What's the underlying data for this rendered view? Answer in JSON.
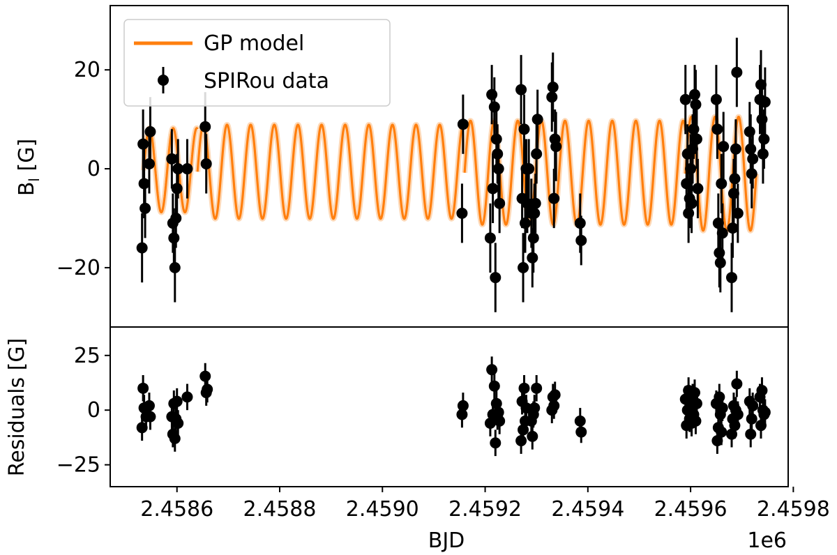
{
  "chart_data": [
    {
      "type": "scatter",
      "panel": "top",
      "ylabel": "B_l [G]",
      "ylabel_main": "B",
      "ylabel_sub": "l",
      "ylabel_unit": " [G]",
      "xlim": [
        2.45847,
        2.45979
      ],
      "ylim": [
        -32,
        33
      ],
      "yticks": [
        20,
        0,
        -20
      ],
      "ytick_labels": [
        "20",
        "0",
        "−20"
      ],
      "legend": {
        "placement": "upper-left",
        "entries": [
          {
            "label": "GP model",
            "style": "line",
            "color": "#ff7f0e"
          },
          {
            "label": "SPIRou data",
            "style": "errorbar-marker",
            "color": "#000000"
          }
        ]
      },
      "series": [
        {
          "name": "GP model",
          "kind": "line",
          "color": "#ff7f0e",
          "period": 4.6e-05,
          "amp_segments": [
            {
              "x_start": 2.458535,
              "x_end": 2.45864,
              "amp": 8.5,
              "offset": -0.3
            },
            {
              "x_start": 2.45864,
              "x_end": 2.45916,
              "amp": 9.5,
              "offset": -0.6
            },
            {
              "x_start": 2.45916,
              "x_end": 2.45959,
              "amp": 10.5,
              "offset": -0.8
            },
            {
              "x_start": 2.45959,
              "x_end": 2.459728,
              "amp": 11.5,
              "offset": -1.0
            }
          ]
        },
        {
          "name": "SPIRou data",
          "kind": "errorbar",
          "color": "#000000",
          "points": [
            {
              "x": 2.458532,
              "y": -16,
              "err": 7
            },
            {
              "x": 2.458534,
              "y": 5,
              "err": 7
            },
            {
              "x": 2.458536,
              "y": -3,
              "err": 7
            },
            {
              "x": 2.458538,
              "y": -8,
              "err": 6
            },
            {
              "x": 2.458546,
              "y": 1,
              "err": 6
            },
            {
              "x": 2.458548,
              "y": 7.5,
              "err": 7
            },
            {
              "x": 2.45859,
              "y": 2,
              "err": 6
            },
            {
              "x": 2.458592,
              "y": -11,
              "err": 6
            },
            {
              "x": 2.458594,
              "y": -14,
              "err": 6
            },
            {
              "x": 2.458596,
              "y": -20,
              "err": 7
            },
            {
              "x": 2.458598,
              "y": -10,
              "err": 6
            },
            {
              "x": 2.4586,
              "y": -4,
              "err": 7
            },
            {
              "x": 2.458602,
              "y": 0,
              "err": 6
            },
            {
              "x": 2.45862,
              "y": 0,
              "err": 6
            },
            {
              "x": 2.458655,
              "y": 8.5,
              "err": 7
            },
            {
              "x": 2.458657,
              "y": 1,
              "err": 6
            },
            {
              "x": 2.459155,
              "y": -9,
              "err": 6
            },
            {
              "x": 2.459157,
              "y": 9,
              "err": 6
            },
            {
              "x": 2.45921,
              "y": -14,
              "err": 7
            },
            {
              "x": 2.459213,
              "y": 15,
              "err": 6
            },
            {
              "x": 2.459215,
              "y": -4,
              "err": 7
            },
            {
              "x": 2.459218,
              "y": 12.5,
              "err": 6
            },
            {
              "x": 2.45922,
              "y": -22,
              "err": 7
            },
            {
              "x": 2.459222,
              "y": 6,
              "err": 7
            },
            {
              "x": 2.459224,
              "y": 3,
              "err": 6
            },
            {
              "x": 2.459226,
              "y": 0,
              "err": 6
            },
            {
              "x": 2.459228,
              "y": -7,
              "err": 6
            },
            {
              "x": 2.45927,
              "y": 16,
              "err": 7
            },
            {
              "x": 2.459272,
              "y": -6,
              "err": 6
            },
            {
              "x": 2.459274,
              "y": -20,
              "err": 7
            },
            {
              "x": 2.459276,
              "y": 8,
              "err": 7
            },
            {
              "x": 2.459278,
              "y": -11,
              "err": 6
            },
            {
              "x": 2.45928,
              "y": 0,
              "err": 6
            },
            {
              "x": 2.459282,
              "y": -7,
              "err": 6
            },
            {
              "x": 2.459285,
              "y": 0,
              "err": 6
            },
            {
              "x": 2.45929,
              "y": -9,
              "err": 7
            },
            {
              "x": 2.459292,
              "y": -18,
              "err": 6
            },
            {
              "x": 2.459294,
              "y": -14,
              "err": 7
            },
            {
              "x": 2.459296,
              "y": -9,
              "err": 6
            },
            {
              "x": 2.459298,
              "y": -7,
              "err": 6
            },
            {
              "x": 2.4593,
              "y": 3,
              "err": 6
            },
            {
              "x": 2.459302,
              "y": 10,
              "err": 6
            },
            {
              "x": 2.45933,
              "y": 14.5,
              "err": 7
            },
            {
              "x": 2.459332,
              "y": 16.5,
              "err": 7
            },
            {
              "x": 2.459334,
              "y": -6,
              "err": 6
            },
            {
              "x": 2.459336,
              "y": 6,
              "err": 6
            },
            {
              "x": 2.459338,
              "y": 4.5,
              "err": 7
            },
            {
              "x": 2.459385,
              "y": -11,
              "err": 6
            },
            {
              "x": 2.459387,
              "y": -14.5,
              "err": 5
            },
            {
              "x": 2.45959,
              "y": 14,
              "err": 7
            },
            {
              "x": 2.459592,
              "y": -3,
              "err": 7
            },
            {
              "x": 2.459594,
              "y": 3,
              "err": 6
            },
            {
              "x": 2.459596,
              "y": -9,
              "err": 6
            },
            {
              "x": 2.459598,
              "y": -6,
              "err": 6
            },
            {
              "x": 2.4596,
              "y": 0,
              "err": 7
            },
            {
              "x": 2.459602,
              "y": -7,
              "err": 6
            },
            {
              "x": 2.459604,
              "y": 4,
              "err": 7
            },
            {
              "x": 2.459606,
              "y": 8,
              "err": 6
            },
            {
              "x": 2.459608,
              "y": 15,
              "err": 6
            },
            {
              "x": 2.45961,
              "y": 13,
              "err": 7
            },
            {
              "x": 2.459612,
              "y": 6,
              "err": 6
            },
            {
              "x": 2.459614,
              "y": -4,
              "err": 6
            },
            {
              "x": 2.45965,
              "y": 14,
              "err": 7
            },
            {
              "x": 2.459652,
              "y": 8,
              "err": 6
            },
            {
              "x": 2.459654,
              "y": -11,
              "err": 6
            },
            {
              "x": 2.459656,
              "y": -17,
              "err": 7
            },
            {
              "x": 2.459658,
              "y": -19,
              "err": 6
            },
            {
              "x": 2.45966,
              "y": -3,
              "err": 6
            },
            {
              "x": 2.459662,
              "y": -13,
              "err": 6
            },
            {
              "x": 2.459664,
              "y": 4.5,
              "err": 7
            },
            {
              "x": 2.45968,
              "y": -22,
              "err": 7
            },
            {
              "x": 2.459682,
              "y": -12,
              "err": 6
            },
            {
              "x": 2.459684,
              "y": -5,
              "err": 7
            },
            {
              "x": 2.459686,
              "y": -2,
              "err": 6
            },
            {
              "x": 2.459688,
              "y": 4,
              "err": 6
            },
            {
              "x": 2.45969,
              "y": 19.5,
              "err": 7
            },
            {
              "x": 2.459692,
              "y": -9,
              "err": 6
            },
            {
              "x": 2.459715,
              "y": 7.5,
              "err": 6
            },
            {
              "x": 2.459717,
              "y": 4,
              "err": 7
            },
            {
              "x": 2.459719,
              "y": -1,
              "err": 7
            },
            {
              "x": 2.459721,
              "y": 2,
              "err": 6
            },
            {
              "x": 2.459735,
              "y": 14,
              "err": 7
            },
            {
              "x": 2.459737,
              "y": 17,
              "err": 7
            },
            {
              "x": 2.459739,
              "y": 10,
              "err": 6
            },
            {
              "x": 2.459741,
              "y": 3,
              "err": 6
            },
            {
              "x": 2.459743,
              "y": 6,
              "err": 6
            },
            {
              "x": 2.459745,
              "y": 13.5,
              "err": 7
            }
          ]
        }
      ]
    },
    {
      "type": "scatter",
      "panel": "bottom",
      "xlabel": "BJD",
      "ylabel": "Residuals [G]",
      "offset_label": "1e6",
      "xlim": [
        2.45847,
        2.45979
      ],
      "ylim": [
        -35,
        38
      ],
      "xticks": [
        2.4586,
        2.4588,
        2.459,
        2.4592,
        2.4594,
        2.4596,
        2.4598
      ],
      "xtick_labels": [
        "2.4586",
        "2.4588",
        "2.4590",
        "2.4592",
        "2.4594",
        "2.4596",
        "2.4598"
      ],
      "yticks": [
        25,
        0,
        -25
      ],
      "ytick_labels": [
        "25",
        "0",
        "−25"
      ],
      "series": [
        {
          "name": "",
          "kind": "errorbar",
          "color": "#000000",
          "points": [
            {
              "x": 2.458532,
              "y": -8,
              "err": 6
            },
            {
              "x": 2.458534,
              "y": 10,
              "err": 6
            },
            {
              "x": 2.458536,
              "y": 1,
              "err": 6
            },
            {
              "x": 2.45854,
              "y": -3,
              "err": 6
            },
            {
              "x": 2.458546,
              "y": 2,
              "err": 6
            },
            {
              "x": 2.458548,
              "y": -3,
              "err": 6
            },
            {
              "x": 2.45859,
              "y": -3,
              "err": 6
            },
            {
              "x": 2.458592,
              "y": -11,
              "err": 6
            },
            {
              "x": 2.458594,
              "y": 3,
              "err": 6
            },
            {
              "x": 2.458596,
              "y": -13,
              "err": 6
            },
            {
              "x": 2.458598,
              "y": -4,
              "err": 6
            },
            {
              "x": 2.4586,
              "y": 4,
              "err": 6
            },
            {
              "x": 2.458602,
              "y": -6,
              "err": 6
            },
            {
              "x": 2.45862,
              "y": 6,
              "err": 6
            },
            {
              "x": 2.458655,
              "y": 15.5,
              "err": 6
            },
            {
              "x": 2.458657,
              "y": 8,
              "err": 6
            },
            {
              "x": 2.458659,
              "y": 9.5,
              "err": 6
            },
            {
              "x": 2.459155,
              "y": -2,
              "err": 6
            },
            {
              "x": 2.459157,
              "y": 2,
              "err": 6
            },
            {
              "x": 2.45921,
              "y": -6,
              "err": 6
            },
            {
              "x": 2.459213,
              "y": 18.5,
              "err": 6
            },
            {
              "x": 2.459215,
              "y": -2,
              "err": 6
            },
            {
              "x": 2.459218,
              "y": 11,
              "err": 6
            },
            {
              "x": 2.45922,
              "y": -15,
              "err": 6
            },
            {
              "x": 2.459222,
              "y": 3,
              "err": 6
            },
            {
              "x": 2.459224,
              "y": -3,
              "err": 6
            },
            {
              "x": 2.459226,
              "y": -1,
              "err": 6
            },
            {
              "x": 2.459228,
              "y": -5,
              "err": 6
            },
            {
              "x": 2.45927,
              "y": -14,
              "err": 6
            },
            {
              "x": 2.459272,
              "y": 4,
              "err": 6
            },
            {
              "x": 2.459274,
              "y": -9,
              "err": 6
            },
            {
              "x": 2.459276,
              "y": 10,
              "err": 6
            },
            {
              "x": 2.459278,
              "y": -5,
              "err": 6
            },
            {
              "x": 2.45928,
              "y": 1,
              "err": 6
            },
            {
              "x": 2.45929,
              "y": -5,
              "err": 6
            },
            {
              "x": 2.459292,
              "y": -12,
              "err": 6
            },
            {
              "x": 2.459294,
              "y": -2,
              "err": 6
            },
            {
              "x": 2.459296,
              "y": 1,
              "err": 6
            },
            {
              "x": 2.4593,
              "y": 10,
              "err": 6
            },
            {
              "x": 2.45933,
              "y": 0,
              "err": 6
            },
            {
              "x": 2.459332,
              "y": 6,
              "err": 6
            },
            {
              "x": 2.459334,
              "y": 2,
              "err": 6
            },
            {
              "x": 2.459336,
              "y": 7,
              "err": 6
            },
            {
              "x": 2.459385,
              "y": -5,
              "err": 6
            },
            {
              "x": 2.459387,
              "y": -10,
              "err": 5
            },
            {
              "x": 2.45959,
              "y": 5,
              "err": 6
            },
            {
              "x": 2.459592,
              "y": -7,
              "err": 6
            },
            {
              "x": 2.459594,
              "y": 0,
              "err": 6
            },
            {
              "x": 2.459596,
              "y": 9,
              "err": 6
            },
            {
              "x": 2.459598,
              "y": -4,
              "err": 6
            },
            {
              "x": 2.4596,
              "y": 2,
              "err": 6
            },
            {
              "x": 2.459602,
              "y": -6,
              "err": 6
            },
            {
              "x": 2.459604,
              "y": 6,
              "err": 6
            },
            {
              "x": 2.459606,
              "y": -2,
              "err": 6
            },
            {
              "x": 2.459608,
              "y": 8,
              "err": 6
            },
            {
              "x": 2.45961,
              "y": -5,
              "err": 6
            },
            {
              "x": 2.459612,
              "y": 3,
              "err": 6
            },
            {
              "x": 2.45965,
              "y": 3,
              "err": 6
            },
            {
              "x": 2.459652,
              "y": -14,
              "err": 6
            },
            {
              "x": 2.459654,
              "y": -8,
              "err": 6
            },
            {
              "x": 2.459656,
              "y": 6,
              "err": 6
            },
            {
              "x": 2.459658,
              "y": -2,
              "err": 6
            },
            {
              "x": 2.45966,
              "y": -10,
              "err": 6
            },
            {
              "x": 2.459662,
              "y": 1,
              "err": 6
            },
            {
              "x": 2.45968,
              "y": -11,
              "err": 6
            },
            {
              "x": 2.459682,
              "y": -4,
              "err": 6
            },
            {
              "x": 2.459684,
              "y": 2,
              "err": 6
            },
            {
              "x": 2.459686,
              "y": -7,
              "err": 6
            },
            {
              "x": 2.459688,
              "y": 0,
              "err": 6
            },
            {
              "x": 2.45969,
              "y": 12,
              "err": 6
            },
            {
              "x": 2.459692,
              "y": -2,
              "err": 6
            },
            {
              "x": 2.459715,
              "y": 4,
              "err": 6
            },
            {
              "x": 2.459717,
              "y": -11,
              "err": 6
            },
            {
              "x": 2.459719,
              "y": -4,
              "err": 6
            },
            {
              "x": 2.459721,
              "y": 2,
              "err": 6
            },
            {
              "x": 2.459735,
              "y": 6,
              "err": 6
            },
            {
              "x": 2.459737,
              "y": -7,
              "err": 6
            },
            {
              "x": 2.459739,
              "y": 9,
              "err": 6
            },
            {
              "x": 2.459741,
              "y": 0,
              "err": 6
            },
            {
              "x": 2.459743,
              "y": -2,
              "err": 6
            },
            {
              "x": 2.459745,
              "y": -1,
              "err": 6
            }
          ]
        }
      ]
    }
  ]
}
